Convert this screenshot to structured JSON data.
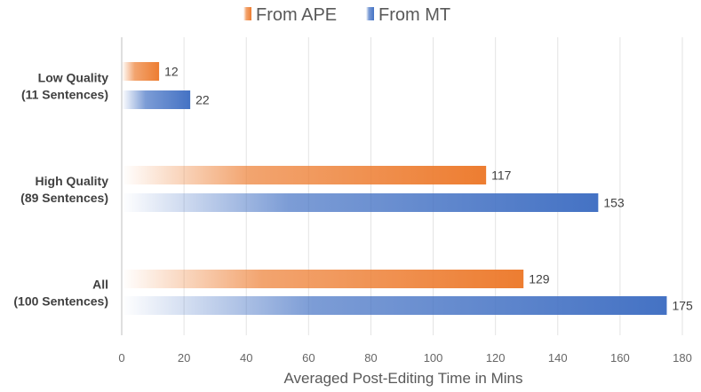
{
  "chart_data": {
    "type": "bar",
    "orientation": "horizontal",
    "categories": [
      [
        "Low Quality",
        "(11 Sentences)"
      ],
      [
        "High Quality",
        "(89 Sentences)"
      ],
      [
        "All",
        "(100 Sentences)"
      ]
    ],
    "series": [
      {
        "name": "From APE",
        "values": [
          12,
          117,
          129
        ],
        "color": "#ED7D31"
      },
      {
        "name": "From MT",
        "values": [
          22,
          153,
          175
        ],
        "color": "#4472C4"
      }
    ],
    "xlabel": "Averaged Post-Editing Time in Mins",
    "xlim": [
      0,
      180
    ],
    "xticks": [
      0,
      20,
      40,
      60,
      80,
      100,
      120,
      140,
      160,
      180
    ],
    "grid": true,
    "legend_position": "top-center"
  }
}
